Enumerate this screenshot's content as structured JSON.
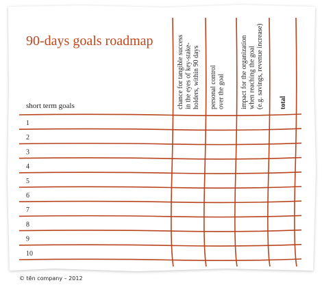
{
  "header": {
    "title": "90-days goals roadmap",
    "goals_label": "short term goals"
  },
  "columns": [
    {
      "lines": [
        "chance for tangible success",
        "in the eyes of key-stake-",
        "holders, within 90 days"
      ]
    },
    {
      "lines": [
        "personal control",
        "over the goal"
      ]
    },
    {
      "lines": [
        "impact for the organization",
        "when reaching the goal",
        "(e.g. savings, revenue increase)"
      ]
    },
    {
      "lines": [
        "total"
      ]
    }
  ],
  "rows": [
    "1",
    "2",
    "3",
    "4",
    "5",
    "6",
    "7",
    "8",
    "9",
    "10"
  ],
  "footer": "© tēn company – 2012"
}
